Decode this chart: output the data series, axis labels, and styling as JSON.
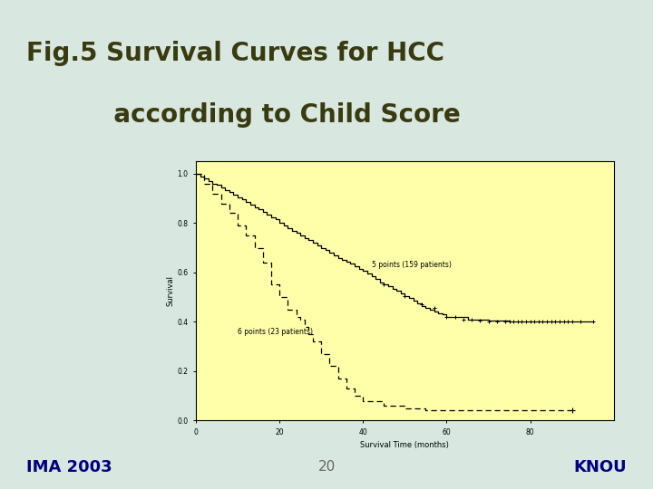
{
  "title_line1": "Fig.5 Survival Curves for HCC",
  "title_line2": "          according to Child Score",
  "title_bg_color": "#a8c878",
  "slide_bg_color": "#d8e8e0",
  "plot_bg_color": "#ffffaa",
  "footer_left": "IMA 2003",
  "footer_center": "20",
  "footer_right": "KNOU",
  "footer_text_color": "#000080",
  "footer_center_color": "#666666",
  "xlabel": "Survival Time (months)",
  "ylabel": "Survival",
  "xlim": [
    0,
    100
  ],
  "ylim": [
    0.0,
    1.05
  ],
  "xticks": [
    0,
    20,
    40,
    60,
    80
  ],
  "yticks": [
    0.0,
    0.2,
    0.4,
    0.6,
    0.8,
    1.0
  ],
  "label_5pts": "5 points (159 patients)",
  "label_6pts": "6 points (23 patients)",
  "curve5_x": [
    0,
    1,
    2,
    3,
    4,
    5,
    6,
    7,
    8,
    9,
    10,
    11,
    12,
    13,
    14,
    15,
    16,
    17,
    18,
    19,
    20,
    21,
    22,
    23,
    24,
    25,
    26,
    27,
    28,
    29,
    30,
    31,
    32,
    33,
    34,
    35,
    36,
    37,
    38,
    39,
    40,
    41,
    42,
    43,
    44,
    45,
    46,
    47,
    48,
    49,
    50,
    51,
    52,
    53,
    54,
    55,
    56,
    57,
    58,
    59,
    60,
    65,
    70,
    75,
    80,
    85,
    90,
    95
  ],
  "curve5_y": [
    1.0,
    0.99,
    0.98,
    0.97,
    0.96,
    0.955,
    0.945,
    0.935,
    0.925,
    0.915,
    0.905,
    0.895,
    0.885,
    0.875,
    0.865,
    0.855,
    0.845,
    0.835,
    0.825,
    0.815,
    0.8,
    0.79,
    0.78,
    0.77,
    0.76,
    0.75,
    0.74,
    0.73,
    0.72,
    0.71,
    0.7,
    0.69,
    0.68,
    0.67,
    0.66,
    0.65,
    0.645,
    0.635,
    0.625,
    0.615,
    0.605,
    0.595,
    0.585,
    0.575,
    0.56,
    0.55,
    0.545,
    0.535,
    0.525,
    0.515,
    0.505,
    0.495,
    0.485,
    0.475,
    0.465,
    0.455,
    0.45,
    0.44,
    0.435,
    0.43,
    0.42,
    0.41,
    0.405,
    0.4,
    0.4,
    0.4,
    0.4,
    0.4
  ],
  "curve6_x": [
    0,
    2,
    4,
    6,
    8,
    10,
    12,
    14,
    16,
    18,
    20,
    22,
    24,
    25,
    26,
    27,
    28,
    30,
    32,
    34,
    36,
    38,
    40,
    45,
    50,
    55,
    60,
    65,
    70,
    80,
    90
  ],
  "curve6_y": [
    1.0,
    0.96,
    0.92,
    0.88,
    0.84,
    0.79,
    0.75,
    0.7,
    0.64,
    0.55,
    0.5,
    0.45,
    0.42,
    0.41,
    0.38,
    0.35,
    0.32,
    0.27,
    0.22,
    0.17,
    0.13,
    0.1,
    0.08,
    0.06,
    0.05,
    0.04,
    0.04,
    0.04,
    0.04,
    0.04,
    0.04
  ],
  "censor5_x": [
    45,
    50,
    54,
    57,
    60,
    62,
    64,
    66,
    68,
    70,
    72,
    74,
    75,
    76,
    77,
    78,
    79,
    80,
    81,
    82,
    83,
    84,
    85,
    86,
    87,
    88,
    89,
    90,
    92,
    95
  ],
  "censor5_y": [
    0.55,
    0.505,
    0.47,
    0.455,
    0.42,
    0.42,
    0.41,
    0.41,
    0.405,
    0.4,
    0.4,
    0.4,
    0.4,
    0.4,
    0.4,
    0.4,
    0.4,
    0.4,
    0.4,
    0.4,
    0.4,
    0.4,
    0.4,
    0.4,
    0.4,
    0.4,
    0.4,
    0.4,
    0.4,
    0.4
  ],
  "censor6_x": [
    90
  ],
  "censor6_y": [
    0.04
  ]
}
